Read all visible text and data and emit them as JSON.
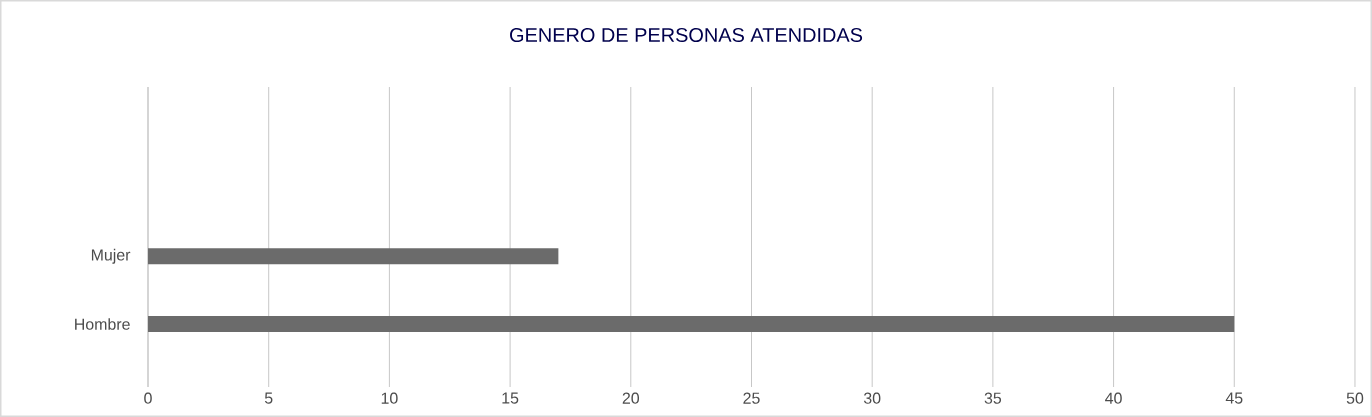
{
  "chart_data": {
    "type": "bar",
    "orientation": "horizontal",
    "title": "GENERO DE PERSONAS ATENDIDAS",
    "categories": [
      "Mujer",
      "Hombre"
    ],
    "values": [
      17,
      45
    ],
    "color": "#6b6b6b",
    "xlim": [
      0,
      50
    ],
    "xticks": [
      0,
      5,
      10,
      15,
      20,
      25,
      30,
      35,
      40,
      45,
      50
    ],
    "grid": "x"
  }
}
